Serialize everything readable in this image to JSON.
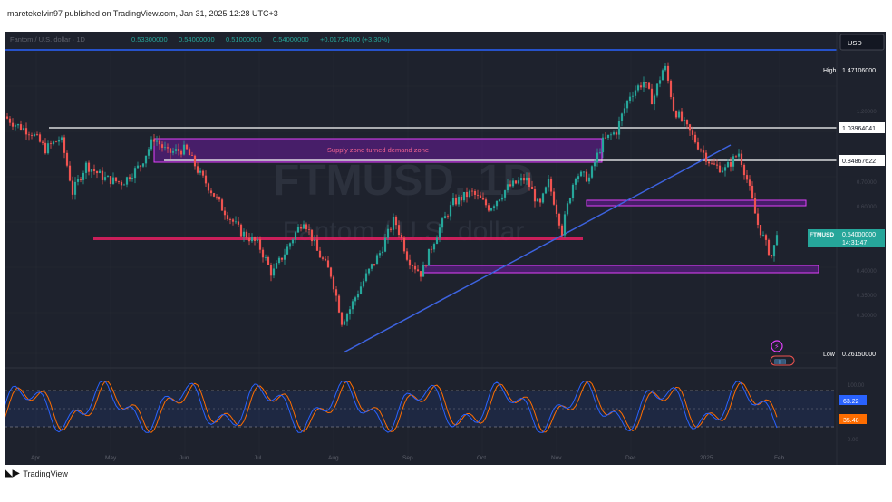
{
  "header": {
    "publish_line": "maretekelvin97 published on TradingView.com, Jan 31, 2025 12:28 UTC+3"
  },
  "ohlc_line": {
    "open": "0.53300000",
    "high": "0.54000000",
    "low": "0.51000000",
    "close": "0.54000000",
    "change": "+0.01724000 (+3.30%)"
  },
  "currency_button": "USD",
  "watermark": {
    "symbol": "FTMUSD, 1D",
    "name": "Fantom / U.S. dollar"
  },
  "annotations": {
    "supply_zone_label": "Supply zone turned demand zone"
  },
  "price_scale": {
    "high_label": "High",
    "high_value": "1.47106000",
    "level1": "1.03964041",
    "level2": "0.84867622",
    "current_symbol": "FTMUSD",
    "current_value": "0.54000000",
    "countdown": "14:31:47",
    "low_label": "Low",
    "low_value": "0.26150000"
  },
  "oscillator": {
    "k_value": "63.22",
    "d_value": "35.48"
  },
  "footer": {
    "brand": "TradingView"
  },
  "colors": {
    "background": "#1e222d",
    "up": "#26a69a",
    "down": "#ef5350",
    "trendline": "#3d63e0",
    "zone_fill": "#7b1fa2",
    "zone_border": "#e040fb",
    "pink_line": "#e91e63",
    "stoch_k": "#2962ff",
    "stoch_d": "#ff6d00"
  },
  "chart_data": {
    "type": "candlestick",
    "title": "",
    "x_ticks": [
      "Apr",
      "May",
      "Jun",
      "Jul",
      "Aug",
      "Sep",
      "Oct",
      "Nov",
      "Dec",
      "2025",
      "Feb"
    ],
    "ylim": [
      0.24,
      1.56
    ],
    "horizontal_levels": [
      1.03964041,
      0.84867622
    ],
    "high": 1.47106,
    "low": 0.2615,
    "last_close": 0.54,
    "close_path": [
      {
        "month": "Apr",
        "close": 0.95
      },
      {
        "month": "May",
        "close": 0.72
      },
      {
        "month": "Jun",
        "close": 0.82
      },
      {
        "month": "Jul",
        "close": 0.42
      },
      {
        "month": "Aug",
        "close": 0.3
      },
      {
        "month": "Sep",
        "close": 0.58
      },
      {
        "month": "Oct",
        "close": 0.7
      },
      {
        "month": "Nov",
        "close": 0.72
      },
      {
        "month": "Dec",
        "close": 1.25
      },
      {
        "month": "2025",
        "close": 0.75
      },
      {
        "month": "Feb",
        "close": 0.54
      }
    ],
    "stochastic": {
      "k": 63.22,
      "d": 35.48,
      "upper": 80,
      "lower": 20
    }
  }
}
